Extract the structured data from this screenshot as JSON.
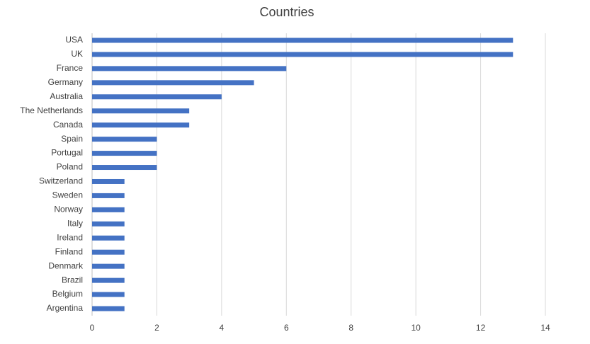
{
  "chart_data": {
    "type": "bar",
    "orientation": "horizontal",
    "title": "Countries",
    "categories": [
      "USA",
      "UK",
      "France",
      "Germany",
      "Australia",
      "The Netherlands",
      "Canada",
      "Spain",
      "Portugal",
      "Poland",
      "Switzerland",
      "Sweden",
      "Norway",
      "Italy",
      "Ireland",
      "Finland",
      "Denmark",
      "Brazil",
      "Belgium",
      "Argentina"
    ],
    "values": [
      13,
      13,
      6,
      5,
      4,
      3,
      3,
      2,
      2,
      2,
      1,
      1,
      1,
      1,
      1,
      1,
      1,
      1,
      1,
      1
    ],
    "color": "#4472c4",
    "xlim": [
      0,
      14
    ],
    "xticks": [
      0,
      2,
      4,
      6,
      8,
      10,
      12,
      14
    ],
    "grid": true
  }
}
